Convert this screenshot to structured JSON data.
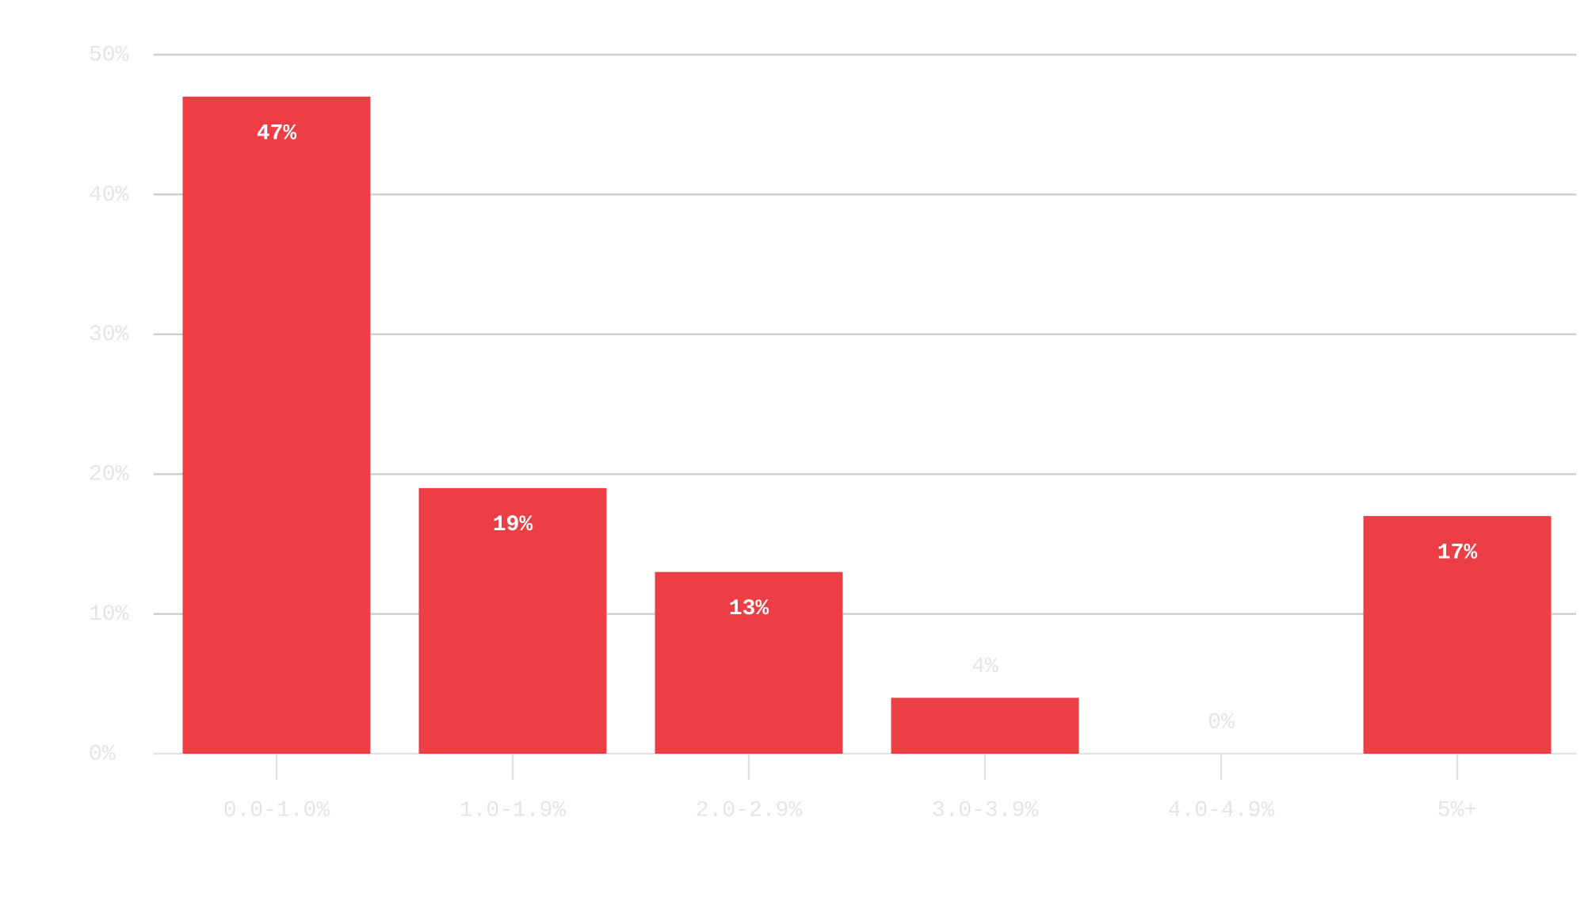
{
  "chart_data": {
    "type": "bar",
    "categories": [
      "0.0-1.0%",
      "1.0-1.9%",
      "2.0-2.9%",
      "3.0-3.9%",
      "4.0-4.9%",
      "5%+"
    ],
    "values": [
      47,
      19,
      13,
      4,
      0,
      17
    ],
    "value_labels": [
      "47%",
      "19%",
      "13%",
      "4%",
      "0%",
      "17%"
    ],
    "color": "#ec3e44",
    "ylim": [
      0,
      50
    ],
    "yticks": [
      {
        "value": 0,
        "label": "0%"
      },
      {
        "value": 10,
        "label": "10%"
      },
      {
        "value": 20,
        "label": "20%"
      },
      {
        "value": 30,
        "label": "30%"
      },
      {
        "value": 40,
        "label": "40%"
      },
      {
        "value": 50,
        "label": "50%"
      }
    ],
    "grid": true
  }
}
